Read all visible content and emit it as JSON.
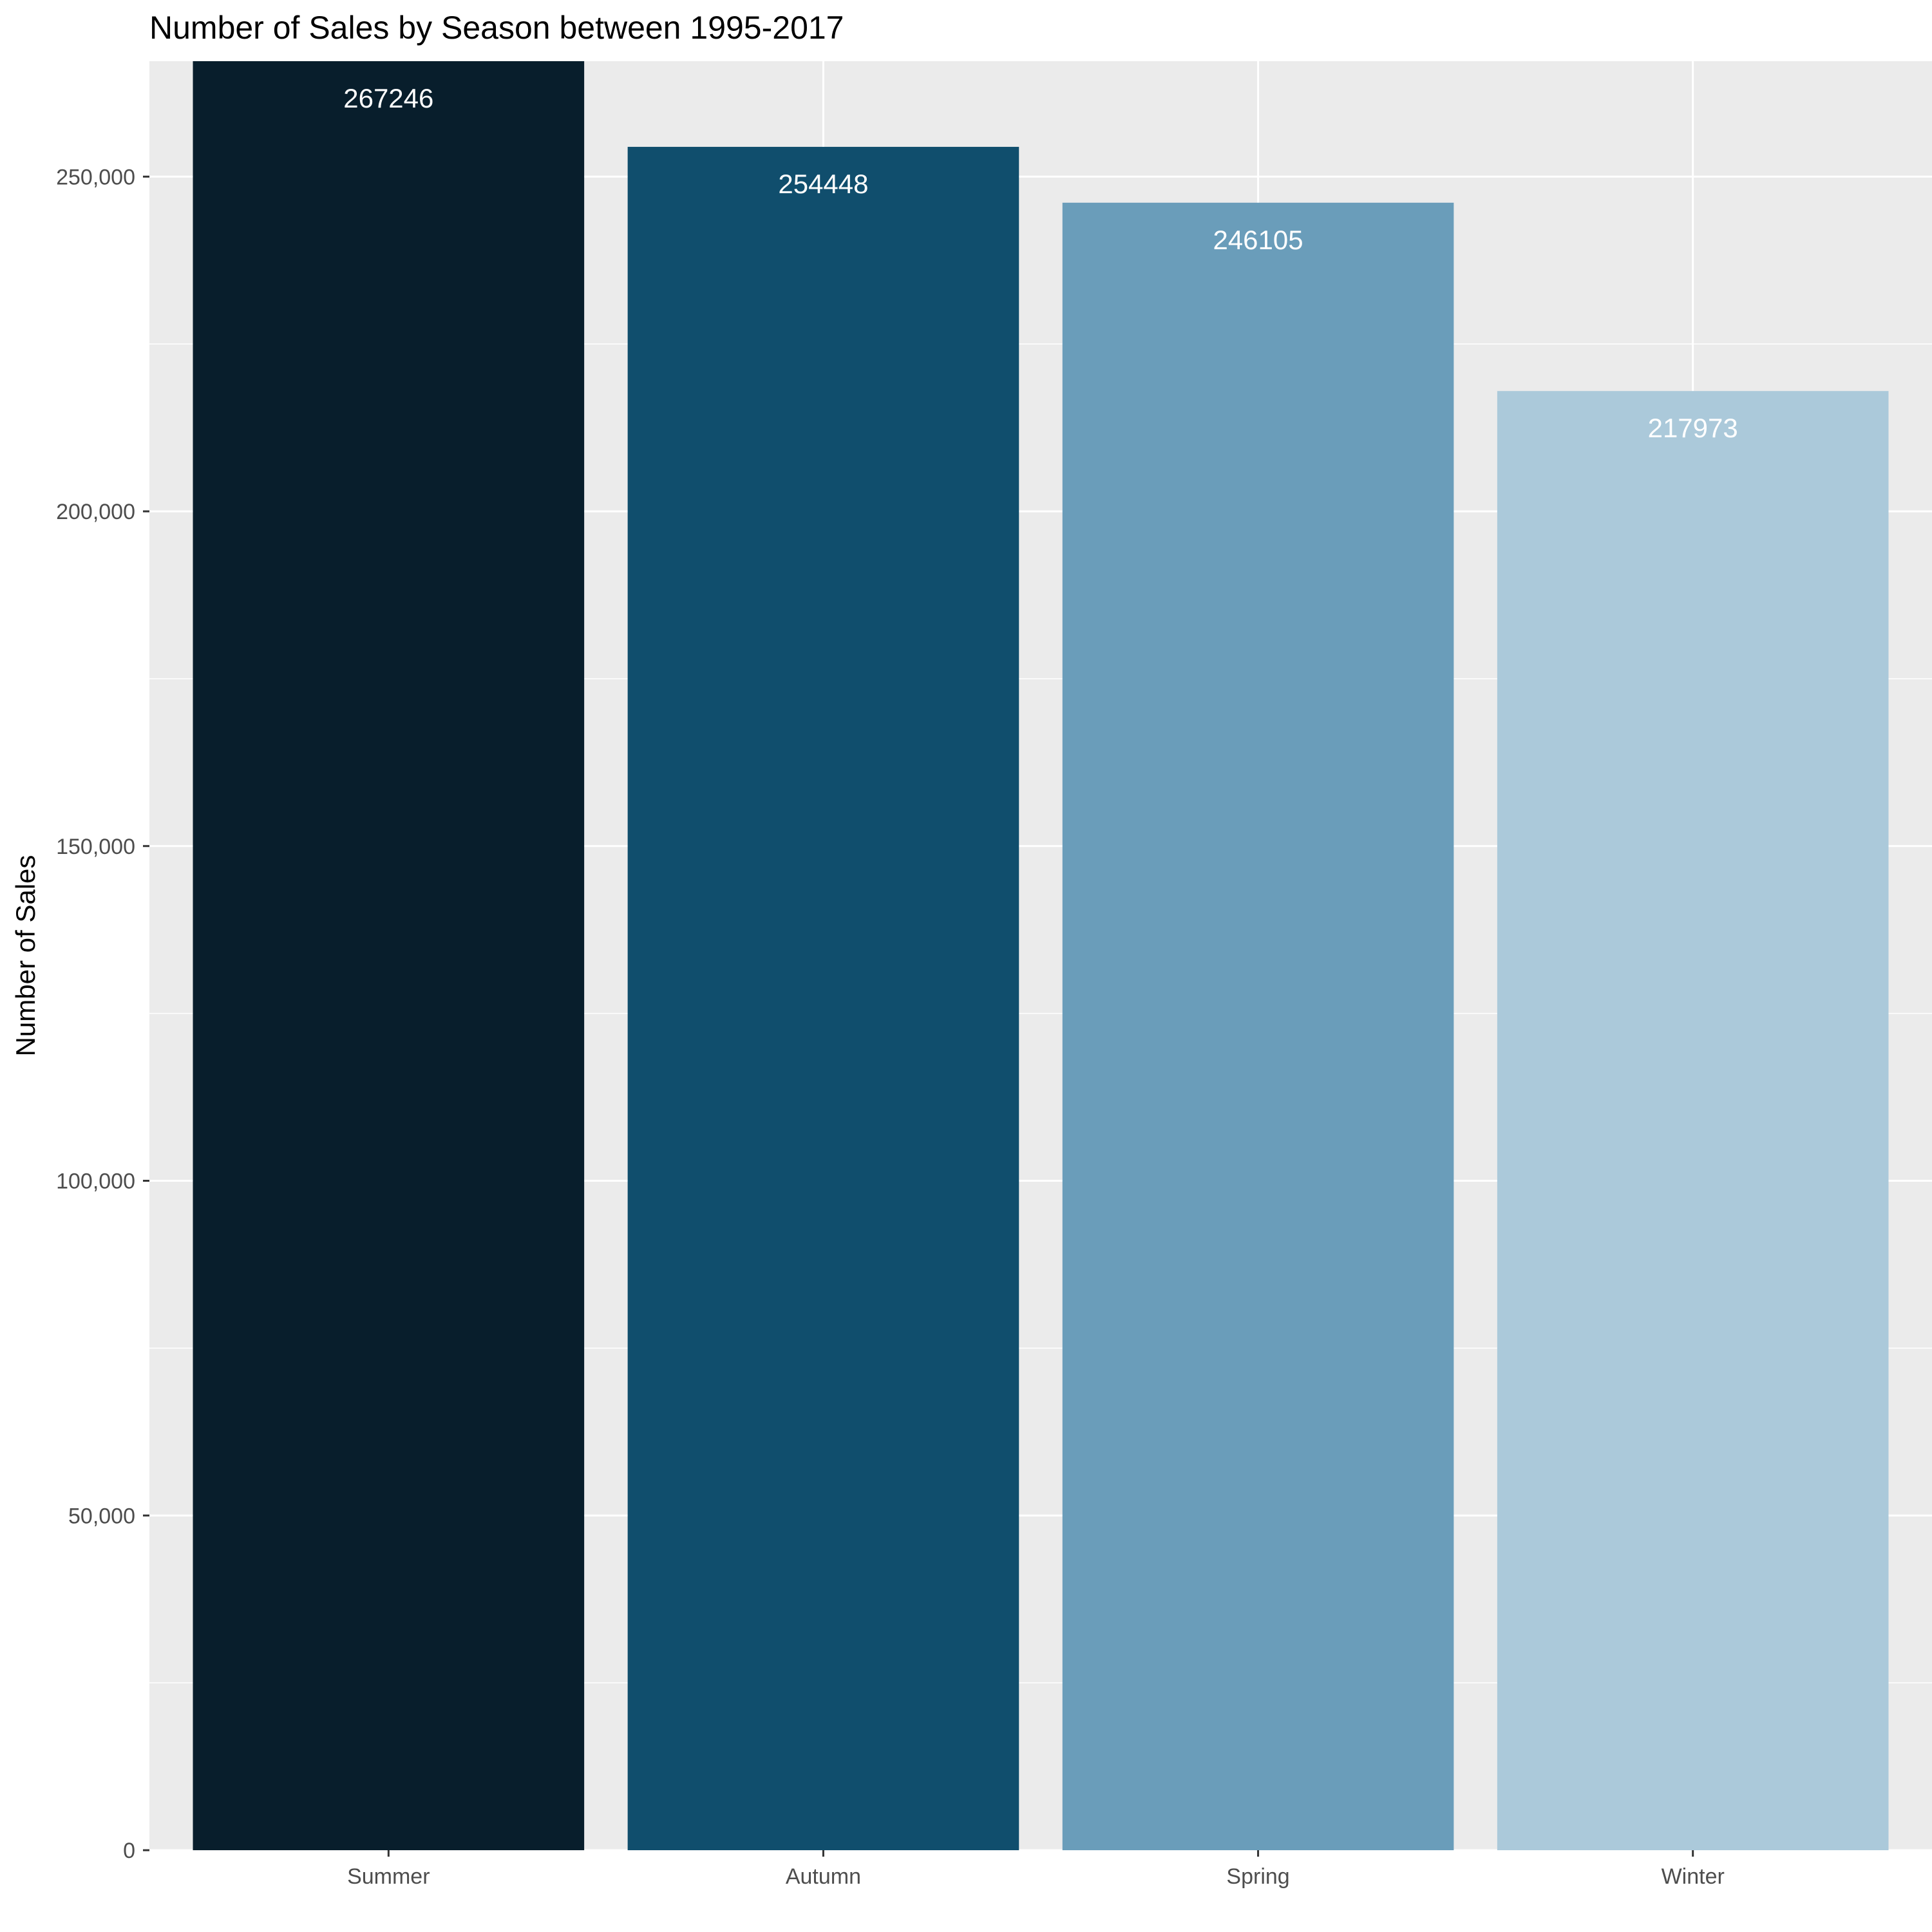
{
  "chart_data": {
    "type": "bar",
    "title": "Number of Sales by Season between 1995-2017",
    "xlabel": "",
    "ylabel": "Number of Sales",
    "categories": [
      "Summer",
      "Autumn",
      "Spring",
      "Winter"
    ],
    "values": [
      267246,
      254448,
      246105,
      217973
    ],
    "data_labels": [
      "267246",
      "254448",
      "246105",
      "217973"
    ],
    "colors": [
      "#081e2c",
      "#104e6d",
      "#6a9dba",
      "#abc9da"
    ],
    "ylim": [
      0,
      267246
    ],
    "yticks": [
      0,
      50000,
      100000,
      150000,
      200000,
      250000
    ],
    "ytick_labels": [
      "0",
      "50,000",
      "100,000",
      "150,000",
      "200,000",
      "250,000"
    ],
    "grid": true,
    "legend": "none",
    "panel_background": "#ebebeb",
    "grid_color": "#ffffff"
  }
}
